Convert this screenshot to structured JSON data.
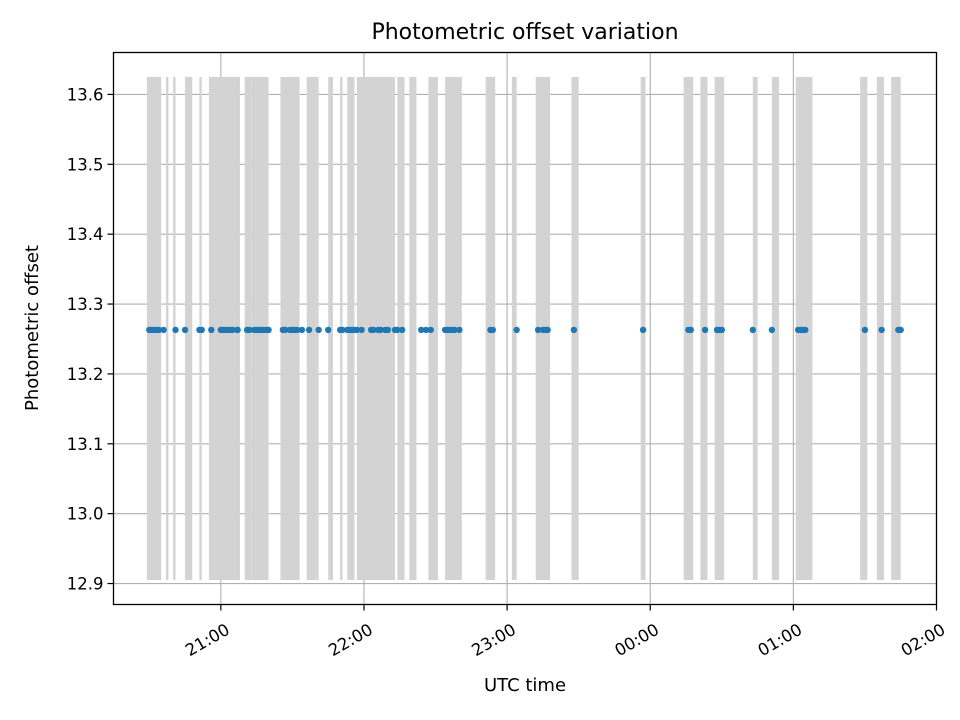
{
  "chart_data": {
    "type": "scatter",
    "title": "Photometric offset variation",
    "xlabel": "UTC time",
    "ylabel": "Photometric offset",
    "x_axis": "time",
    "x_start_date": "day 1",
    "xlim": [
      "20:15",
      "02:00"
    ],
    "ylim": [
      12.87,
      13.66
    ],
    "xtick_labels": [
      "21:00",
      "22:00",
      "23:00",
      "00:00",
      "01:00",
      "02:00"
    ],
    "xtick_values": [
      "21:00",
      "22:00",
      "23:00",
      "00:00",
      "01:00",
      "02:00"
    ],
    "ytick_values": [
      12.9,
      13.0,
      13.1,
      13.2,
      13.3,
      13.4,
      13.5,
      13.6
    ],
    "ytick_labels": [
      "12.9",
      "13.0",
      "13.1",
      "13.2",
      "13.3",
      "13.4",
      "13.5",
      "13.6"
    ],
    "grid": true,
    "point_color": "#1f77b4",
    "band_color": "#d3d3d3",
    "band_range": [
      12.905,
      13.625
    ],
    "series": [
      {
        "y_value": 13.263,
        "times": [
          "20:30",
          "20:31",
          "20:32",
          "20:33",
          "20:34",
          "20:36",
          "20:41",
          "20:45",
          "20:51",
          "20:52",
          "20:56",
          "21:00",
          "21:01",
          "21:02",
          "21:03",
          "21:04",
          "21:05",
          "21:07",
          "21:07",
          "21:11",
          "21:12",
          "21:14",
          "21:15",
          "21:16",
          "21:17",
          "21:18",
          "21:19",
          "21:20",
          "21:26",
          "21:27",
          "21:29",
          "21:30",
          "21:31",
          "21:32",
          "21:34",
          "21:37",
          "21:41",
          "21:45",
          "21:50",
          "21:51",
          "21:53",
          "21:54",
          "21:55",
          "21:56",
          "21:57",
          "21:59",
          "22:03",
          "22:04",
          "22:06",
          "22:07",
          "22:09",
          "22:10",
          "22:13",
          "22:14",
          "22:16",
          "22:24",
          "22:26",
          "22:28",
          "22:34",
          "22:35",
          "22:36",
          "22:37",
          "22:38",
          "22:40",
          "22:53",
          "22:54",
          "23:04",
          "23:13",
          "23:15",
          "23:16",
          "23:17",
          "23:28",
          "23:57",
          "00:16",
          "00:17",
          "00:23",
          "00:28",
          "00:29",
          "00:30",
          "00:43",
          "00:51",
          "01:02",
          "01:03",
          "01:04",
          "01:05",
          "01:30",
          "01:37",
          "01:44",
          "01:45"
        ]
      }
    ],
    "bands": [
      [
        "20:29",
        "20:35"
      ],
      [
        "20:37",
        "20:38"
      ],
      [
        "20:40",
        "20:41"
      ],
      [
        "20:45",
        "20:48"
      ],
      [
        "20:51",
        "20:52"
      ],
      [
        "20:55",
        "21:08"
      ],
      [
        "21:10",
        "21:13"
      ],
      [
        "21:13",
        "21:20"
      ],
      [
        "21:25",
        "21:33"
      ],
      [
        "21:36",
        "21:40"
      ],
      [
        "21:40",
        "21:41"
      ],
      [
        "21:45",
        "21:47"
      ],
      [
        "21:50",
        "21:51"
      ],
      [
        "21:53",
        "21:56"
      ],
      [
        "21:57",
        "22:13"
      ],
      [
        "22:14",
        "22:17"
      ],
      [
        "22:19",
        "22:22"
      ],
      [
        "22:27",
        "22:31"
      ],
      [
        "22:34",
        "22:41"
      ],
      [
        "22:51",
        "22:55"
      ],
      [
        "23:02",
        "23:04"
      ],
      [
        "23:12",
        "23:18"
      ],
      [
        "23:27",
        "23:30"
      ],
      [
        "23:56",
        "23:58"
      ],
      [
        "00:14",
        "00:18"
      ],
      [
        "00:21",
        "00:24"
      ],
      [
        "00:27",
        "00:31"
      ],
      [
        "00:43",
        "00:45"
      ],
      [
        "00:51",
        "00:54"
      ],
      [
        "01:01",
        "01:08"
      ],
      [
        "01:28",
        "01:31"
      ],
      [
        "01:35",
        "01:38"
      ],
      [
        "01:41",
        "01:45"
      ]
    ]
  }
}
